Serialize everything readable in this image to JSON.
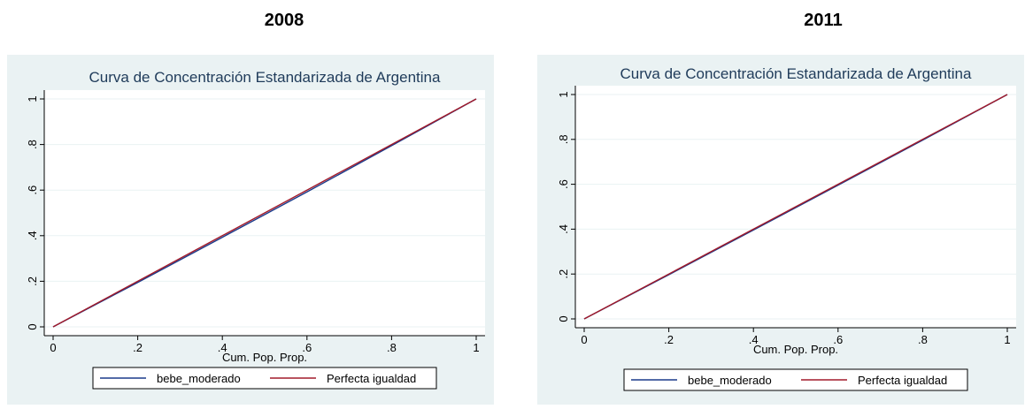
{
  "panels": [
    {
      "year": "2008"
    },
    {
      "year": "2011"
    }
  ],
  "colors": {
    "series1": "#1a3a8a",
    "series2": "#a21a2a",
    "panel_bg": "#eaf2f3",
    "plot_bg": "#ffffff",
    "title": "#1f3b5a"
  },
  "chart_data": [
    {
      "type": "line",
      "title": "Curva de Concentración Estandarizada de Argentina",
      "xlabel": "Cum. Pop. Prop.",
      "ylabel": "",
      "xlim": [
        0,
        1
      ],
      "ylim": [
        0,
        1
      ],
      "xticks": [
        "0",
        ".2",
        ".4",
        ".6",
        ".8",
        "1"
      ],
      "yticks": [
        "0",
        ".2",
        ".4",
        ".6",
        ".8",
        "1"
      ],
      "grid": true,
      "legend": "bottom",
      "x": [
        0,
        0.2,
        0.4,
        0.6,
        0.8,
        1
      ],
      "series": [
        {
          "name": "bebe_moderado",
          "values": [
            0,
            0.195,
            0.393,
            0.592,
            0.795,
            1
          ]
        },
        {
          "name": "Perfecta igualdad",
          "values": [
            0,
            0.2,
            0.4,
            0.6,
            0.8,
            1
          ]
        }
      ]
    },
    {
      "type": "line",
      "title": "Curva de Concentración Estandarizada de Argentina",
      "xlabel": "Cum. Pop. Prop.",
      "ylabel": "",
      "xlim": [
        0,
        1
      ],
      "ylim": [
        0,
        1
      ],
      "xticks": [
        "0",
        ".2",
        ".4",
        ".6",
        ".8",
        "1"
      ],
      "yticks": [
        "0",
        ".2",
        ".4",
        ".6",
        ".8",
        "1"
      ],
      "grid": true,
      "legend": "bottom",
      "x": [
        0,
        0.2,
        0.4,
        0.6,
        0.8,
        1
      ],
      "series": [
        {
          "name": "bebe_moderado",
          "values": [
            0,
            0.197,
            0.396,
            0.596,
            0.797,
            1
          ]
        },
        {
          "name": "Perfecta igualdad",
          "values": [
            0,
            0.2,
            0.4,
            0.6,
            0.8,
            1
          ]
        }
      ]
    }
  ]
}
